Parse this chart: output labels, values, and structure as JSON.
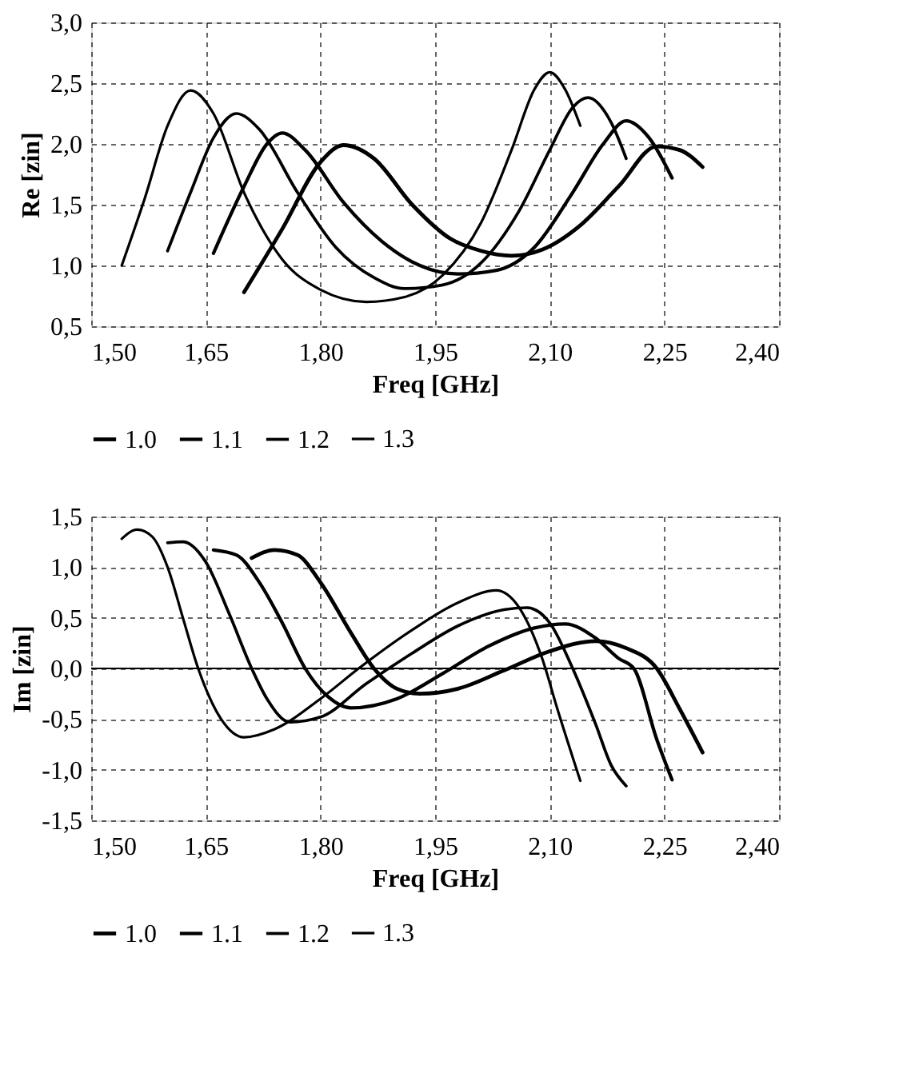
{
  "chart_data": [
    {
      "type": "line",
      "xlabel": "Freq [GHz]",
      "ylabel": "Re [zin]",
      "legend": "bottom",
      "grid": true,
      "xlim": [
        1.5,
        2.4
      ],
      "ylim": [
        0.5,
        3.0
      ],
      "xticks": [
        {
          "value": 1.5,
          "label": "1,50"
        },
        {
          "value": 1.65,
          "label": "1,65"
        },
        {
          "value": 1.8,
          "label": "1,80"
        },
        {
          "value": 1.95,
          "label": "1,95"
        },
        {
          "value": 2.1,
          "label": "2,10"
        },
        {
          "value": 2.25,
          "label": "2,25"
        },
        {
          "value": 2.4,
          "label": "2,40"
        }
      ],
      "yticks": [
        {
          "value": 0.5,
          "label": "0,5"
        },
        {
          "value": 1.0,
          "label": "1,0"
        },
        {
          "value": 1.5,
          "label": "1,5"
        },
        {
          "value": 2.0,
          "label": "2,0"
        },
        {
          "value": 2.5,
          "label": "2,5"
        },
        {
          "value": 3.0,
          "label": "3,0"
        }
      ],
      "series": [
        {
          "name": "1.0",
          "color": "#000000",
          "x": [
            1.7,
            1.75,
            1.8,
            1.83,
            1.87,
            1.92,
            1.97,
            2.01,
            2.05,
            2.09,
            2.14,
            2.19,
            2.24,
            2.27,
            2.3
          ],
          "values": [
            0.78,
            1.3,
            1.85,
            1.99,
            1.88,
            1.5,
            1.22,
            1.12,
            1.08,
            1.13,
            1.33,
            1.65,
            1.98,
            1.95,
            1.81
          ]
        },
        {
          "name": "1.1",
          "color": "#000000",
          "x": [
            1.66,
            1.7,
            1.73,
            1.75,
            1.78,
            1.83,
            1.88,
            1.93,
            1.98,
            2.03,
            2.08,
            2.13,
            2.17,
            2.2,
            2.23,
            2.26
          ],
          "values": [
            1.1,
            1.65,
            2.0,
            2.09,
            1.95,
            1.52,
            1.2,
            1.0,
            0.93,
            0.96,
            1.15,
            1.6,
            2.0,
            2.19,
            2.05,
            1.72
          ]
        },
        {
          "name": "1.2",
          "color": "#000000",
          "x": [
            1.6,
            1.63,
            1.66,
            1.69,
            1.72,
            1.77,
            1.82,
            1.87,
            1.91,
            1.96,
            2.01,
            2.06,
            2.1,
            2.13,
            2.15,
            2.18,
            2.2
          ],
          "values": [
            1.12,
            1.6,
            2.05,
            2.25,
            2.12,
            1.6,
            1.15,
            0.9,
            0.81,
            0.84,
            1.02,
            1.45,
            1.95,
            2.3,
            2.38,
            2.18,
            1.88
          ]
        },
        {
          "name": "1.3",
          "color": "#000000",
          "x": [
            1.54,
            1.57,
            1.6,
            1.63,
            1.66,
            1.7,
            1.75,
            1.8,
            1.86,
            1.91,
            1.96,
            2.01,
            2.05,
            2.08,
            2.1,
            2.12,
            2.14
          ],
          "values": [
            1.0,
            1.55,
            2.15,
            2.44,
            2.25,
            1.6,
            1.05,
            0.8,
            0.7,
            0.74,
            0.92,
            1.35,
            1.95,
            2.45,
            2.59,
            2.45,
            2.15
          ]
        }
      ]
    },
    {
      "type": "line",
      "xlabel": "Freq [GHz]",
      "ylabel": "Im [zin]",
      "legend": "bottom",
      "grid": true,
      "xlim": [
        1.5,
        2.4
      ],
      "ylim": [
        -1.5,
        1.5
      ],
      "xticks": [
        {
          "value": 1.5,
          "label": "1,50"
        },
        {
          "value": 1.65,
          "label": "1,65"
        },
        {
          "value": 1.8,
          "label": "1,80"
        },
        {
          "value": 1.95,
          "label": "1,95"
        },
        {
          "value": 2.1,
          "label": "2,10"
        },
        {
          "value": 2.25,
          "label": "2,25"
        },
        {
          "value": 2.4,
          "label": "2,40"
        }
      ],
      "yticks": [
        {
          "value": -1.5,
          "label": "-1,5"
        },
        {
          "value": -1.0,
          "label": "-1,0"
        },
        {
          "value": -0.5,
          "label": "-0,5"
        },
        {
          "value": 0.0,
          "label": "0,0"
        },
        {
          "value": 0.5,
          "label": "0,5"
        },
        {
          "value": 1.0,
          "label": "1,0"
        },
        {
          "value": 1.5,
          "label": "1,5"
        }
      ],
      "ref_lines": [
        {
          "axis": "y",
          "value": 0.0,
          "label": null,
          "color": "#000000",
          "line_style": "solid"
        }
      ],
      "series": [
        {
          "name": "1.0",
          "color": "#000000",
          "x": [
            1.71,
            1.74,
            1.77,
            1.8,
            1.84,
            1.87,
            1.9,
            1.93,
            1.98,
            2.04,
            2.1,
            2.16,
            2.2,
            2.24,
            2.27,
            2.3
          ],
          "values": [
            1.09,
            1.17,
            1.12,
            0.85,
            0.35,
            0.0,
            -0.2,
            -0.25,
            -0.2,
            -0.02,
            0.17,
            0.27,
            0.2,
            0.0,
            -0.4,
            -0.83
          ]
        },
        {
          "name": "1.1",
          "color": "#000000",
          "x": [
            1.66,
            1.69,
            1.72,
            1.75,
            1.78,
            1.81,
            1.84,
            1.9,
            1.96,
            2.02,
            2.08,
            2.12,
            2.16,
            2.19,
            2.21,
            2.24,
            2.26
          ],
          "values": [
            1.17,
            1.12,
            0.85,
            0.45,
            0.0,
            -0.28,
            -0.39,
            -0.3,
            -0.05,
            0.22,
            0.4,
            0.44,
            0.3,
            0.1,
            0.0,
            -0.7,
            -1.1
          ]
        },
        {
          "name": "1.2",
          "color": "#000000",
          "x": [
            1.6,
            1.62,
            1.65,
            1.68,
            1.71,
            1.73,
            1.76,
            1.8,
            1.86,
            1.92,
            1.98,
            2.04,
            2.07,
            2.1,
            2.13,
            2.16,
            2.18,
            2.2
          ],
          "values": [
            1.24,
            1.25,
            1.05,
            0.55,
            0.0,
            -0.3,
            -0.53,
            -0.48,
            -0.15,
            0.15,
            0.42,
            0.58,
            0.6,
            0.45,
            0.0,
            -0.55,
            -0.95,
            -1.16
          ]
        },
        {
          "name": "1.3",
          "color": "#000000",
          "x": [
            1.54,
            1.56,
            1.58,
            1.6,
            1.62,
            1.64,
            1.67,
            1.7,
            1.74,
            1.8,
            1.85,
            1.92,
            1.98,
            2.03,
            2.06,
            2.09,
            2.11,
            2.14
          ],
          "values": [
            1.28,
            1.37,
            1.3,
            1.0,
            0.5,
            0.0,
            -0.5,
            -0.68,
            -0.6,
            -0.3,
            0.0,
            0.38,
            0.65,
            0.77,
            0.6,
            0.1,
            -0.4,
            -1.11
          ]
        }
      ]
    }
  ]
}
